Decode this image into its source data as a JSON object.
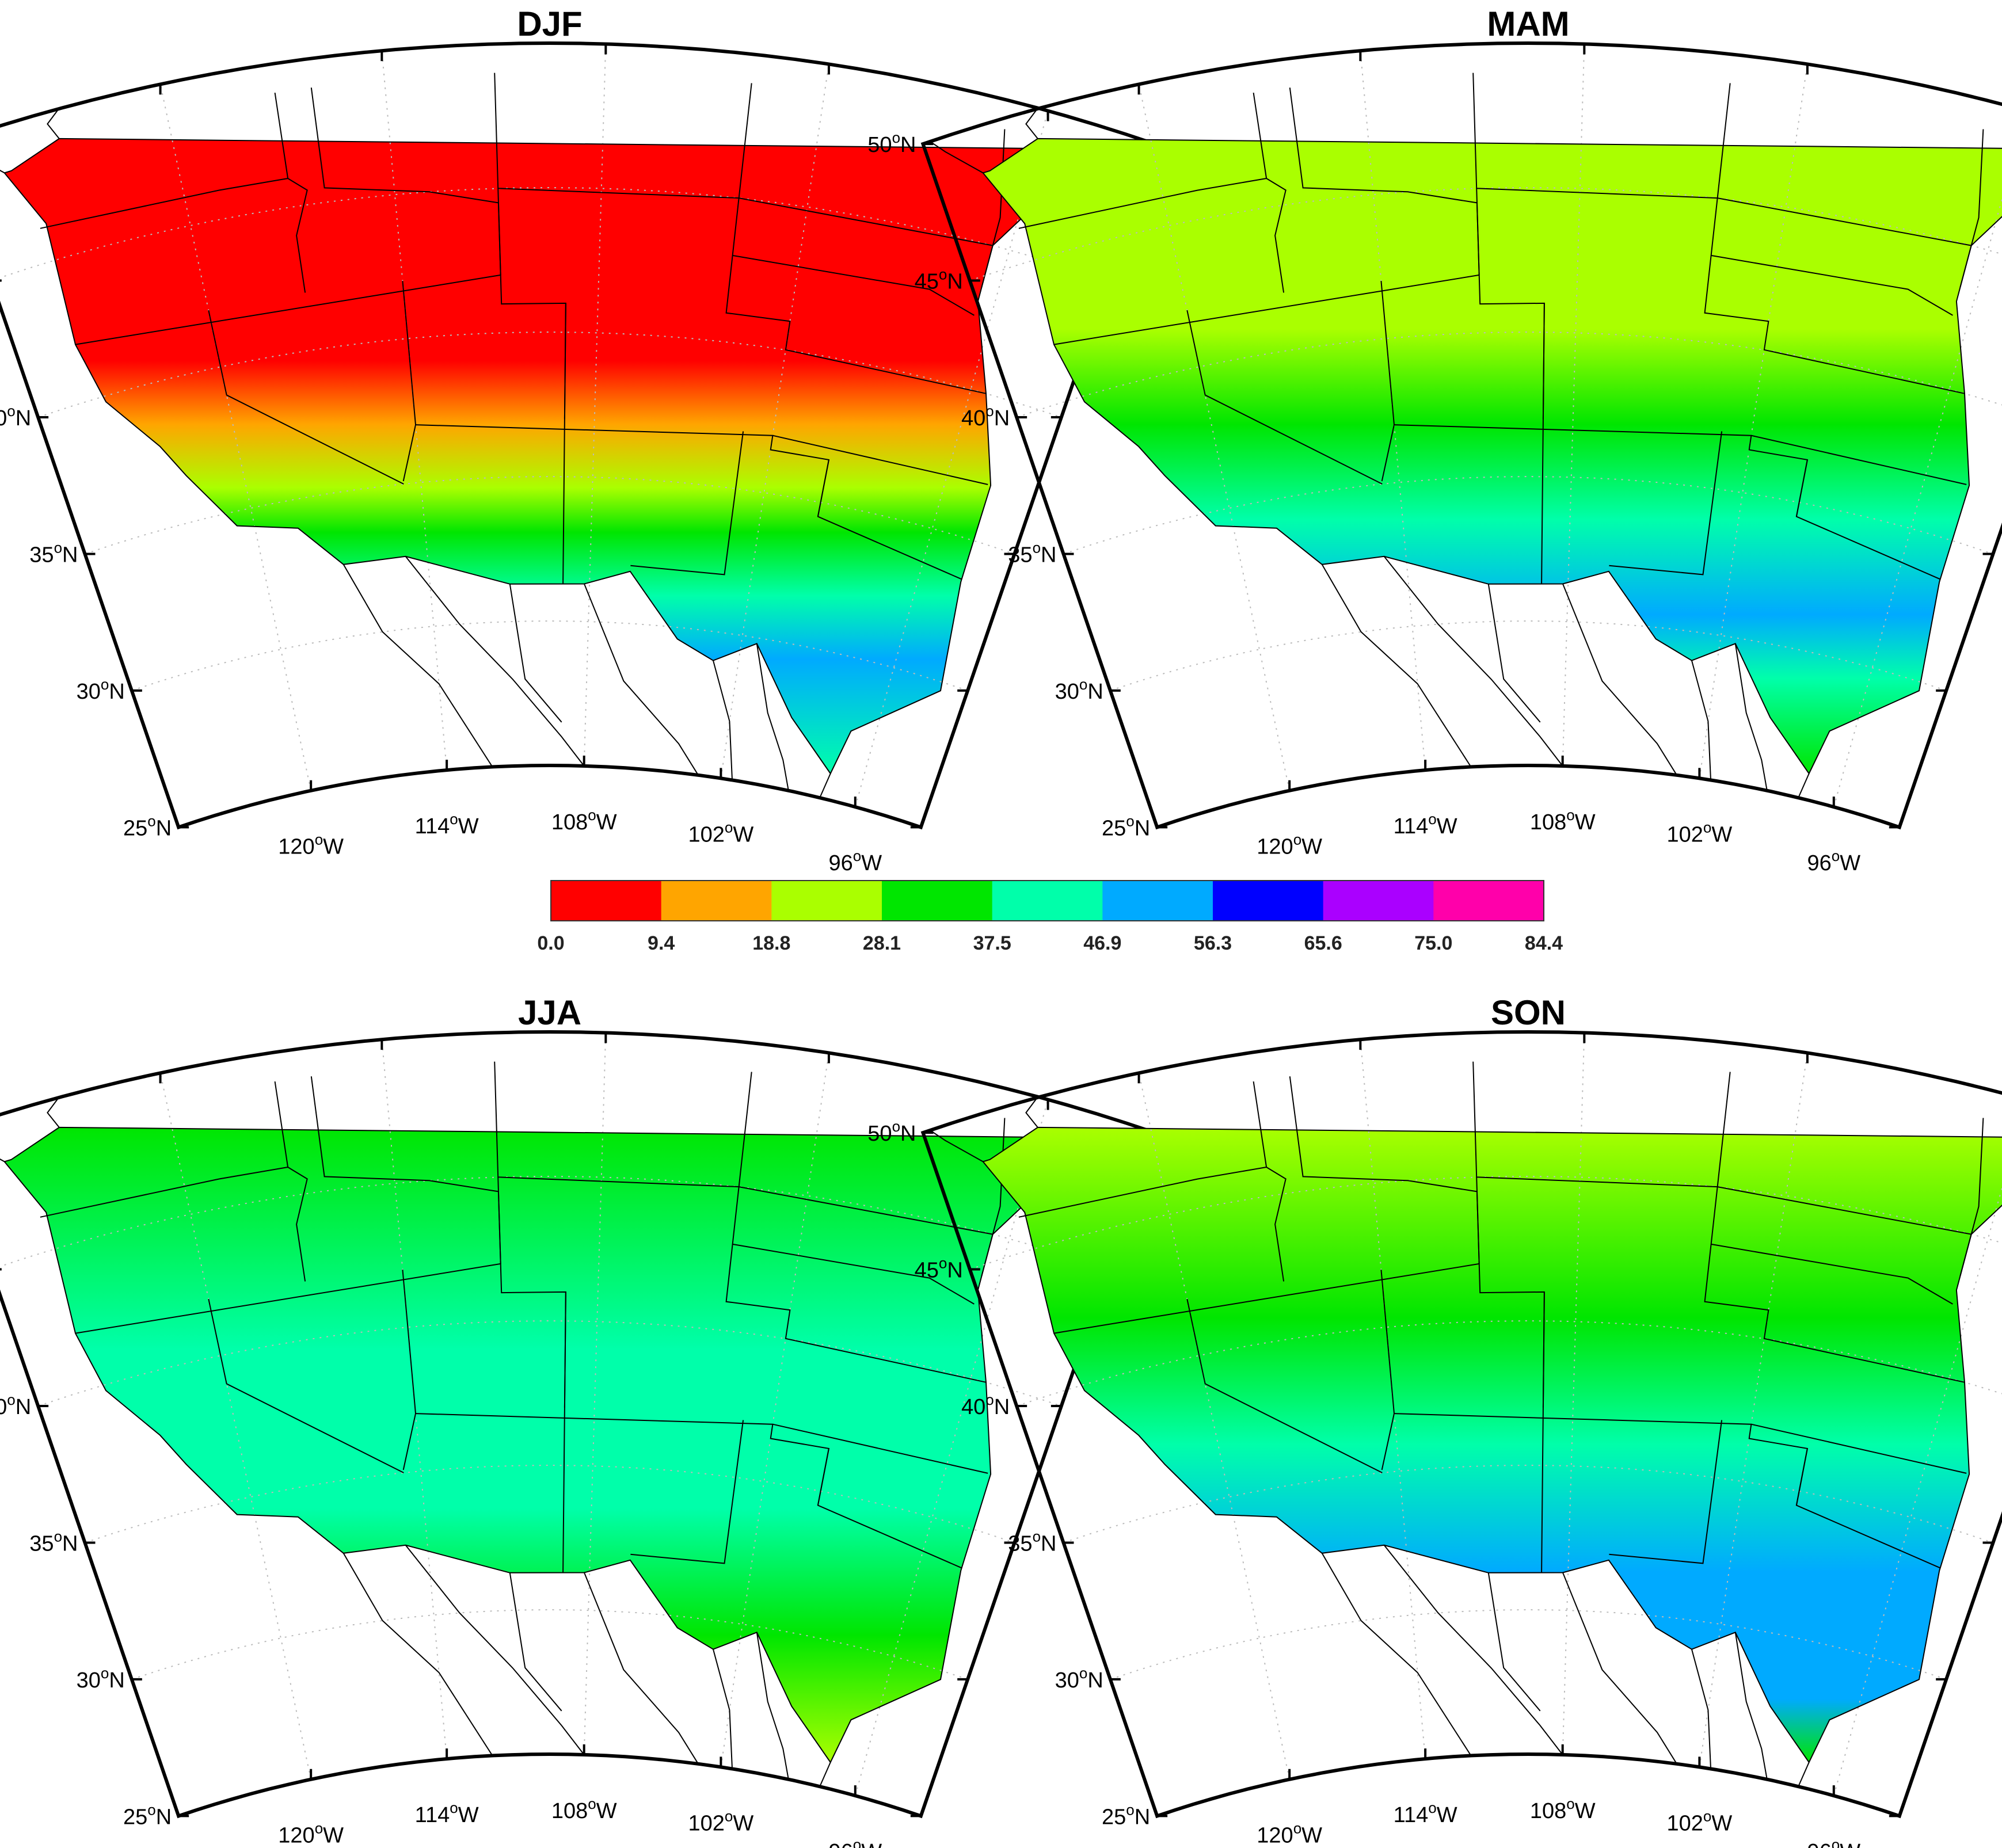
{
  "figure": {
    "panels": [
      {
        "id": "djf",
        "title": "DJF"
      },
      {
        "id": "mam",
        "title": "MAM"
      },
      {
        "id": "jja",
        "title": "JJA"
      },
      {
        "id": "son",
        "title": "SON"
      }
    ],
    "lat_ticks": [
      {
        "value": 50,
        "deg": "50",
        "hemi": "N"
      },
      {
        "value": 45,
        "deg": "45",
        "hemi": "N"
      },
      {
        "value": 40,
        "deg": "40",
        "hemi": "N"
      },
      {
        "value": 35,
        "deg": "35",
        "hemi": "N"
      },
      {
        "value": 30,
        "deg": "30",
        "hemi": "N"
      },
      {
        "value": 25,
        "deg": "25",
        "hemi": "N"
      }
    ],
    "lon_ticks": [
      {
        "value": -120,
        "deg": "120",
        "hemi": "W"
      },
      {
        "value": -114,
        "deg": "114",
        "hemi": "W"
      },
      {
        "value": -108,
        "deg": "108",
        "hemi": "W"
      },
      {
        "value": -102,
        "deg": "102",
        "hemi": "W"
      },
      {
        "value": -96,
        "deg": "96",
        "hemi": "W"
      }
    ],
    "degree_symbol": "o"
  },
  "chart_data": {
    "type": "heatmap",
    "map_extent": {
      "lat_range": [
        25,
        50
      ],
      "lon_range": [
        -126,
        -93
      ]
    },
    "grid": true,
    "colorbar": {
      "placement": "center",
      "ticks": [
        "0.0",
        "9.4",
        "18.8",
        "28.1",
        "37.5",
        "46.9",
        "56.3",
        "65.6",
        "75.0",
        "84.4"
      ],
      "colors": [
        "#ff0000",
        "#ffa500",
        "#aaff00",
        "#00e600",
        "#00ffaa",
        "#00aaff",
        "#0000ff",
        "#aa00ff",
        "#ff00aa"
      ]
    },
    "panels": [
      "DJF",
      "MAM",
      "JJA",
      "SON"
    ]
  }
}
